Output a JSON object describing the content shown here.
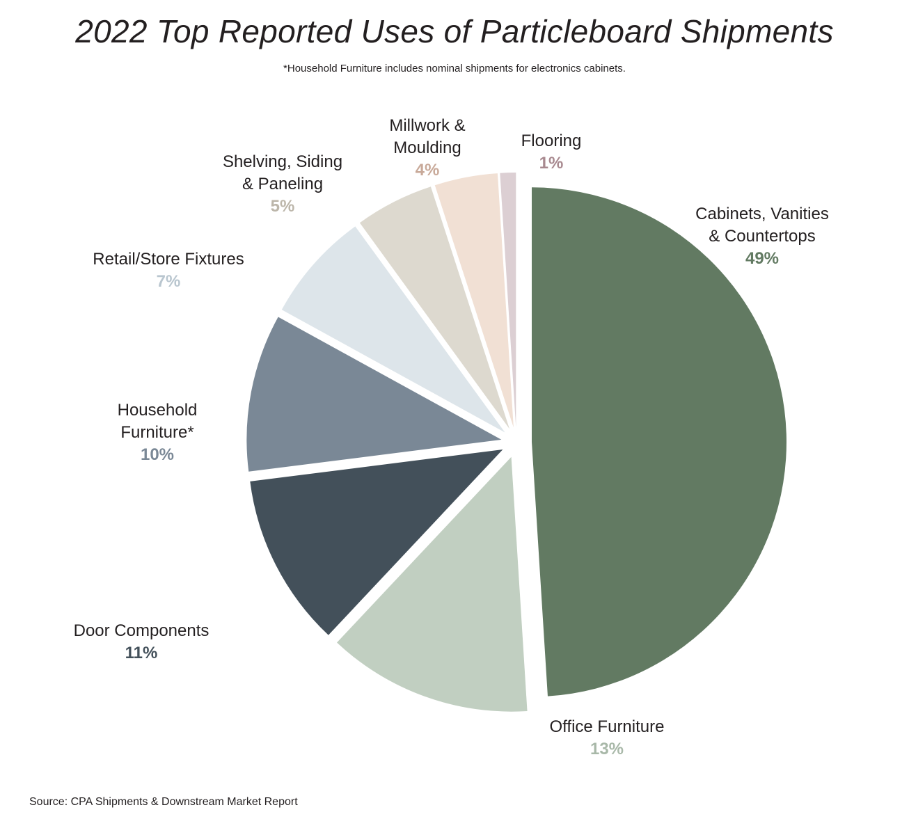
{
  "title": "2022 Top Reported Uses of Particleboard Shipments",
  "subtitle": "*Household Furniture includes nominal shipments for electronics cabinets.",
  "source": "Source: CPA Shipments & Downstream Market Report",
  "chart_data": {
    "type": "pie",
    "title": "2022 Top Reported Uses of Particleboard Shipments",
    "slices": [
      {
        "label_lines": [
          "Cabinets, Vanities",
          "& Countertops"
        ],
        "percent_label": "49%",
        "value": 49,
        "color": "#627a62",
        "pct_color": "#627a62"
      },
      {
        "label_lines": [
          "Office Furniture"
        ],
        "percent_label": "13%",
        "value": 13,
        "color": "#c1cfc1",
        "pct_color": "#a8b8a8"
      },
      {
        "label_lines": [
          "Door Components"
        ],
        "percent_label": "11%",
        "value": 11,
        "color": "#43505a",
        "pct_color": "#43505a"
      },
      {
        "label_lines": [
          "Household",
          "Furniture*"
        ],
        "percent_label": "10%",
        "value": 10,
        "color": "#7a8896",
        "pct_color": "#7a8896"
      },
      {
        "label_lines": [
          "Retail/Store Fixtures"
        ],
        "percent_label": "7%",
        "value": 7,
        "color": "#dde5ea",
        "pct_color": "#b9c6cf"
      },
      {
        "label_lines": [
          "Shelving, Siding",
          "& Paneling"
        ],
        "percent_label": "5%",
        "value": 5,
        "color": "#ddd9cf",
        "pct_color": "#bcb6aa"
      },
      {
        "label_lines": [
          "Millwork &",
          "Moulding"
        ],
        "percent_label": "4%",
        "value": 4,
        "color": "#f1e0d4",
        "pct_color": "#c8a999"
      },
      {
        "label_lines": [
          "Flooring"
        ],
        "percent_label": "1%",
        "value": 1,
        "color": "#dccfd3",
        "pct_color": "#a8898f"
      }
    ]
  }
}
